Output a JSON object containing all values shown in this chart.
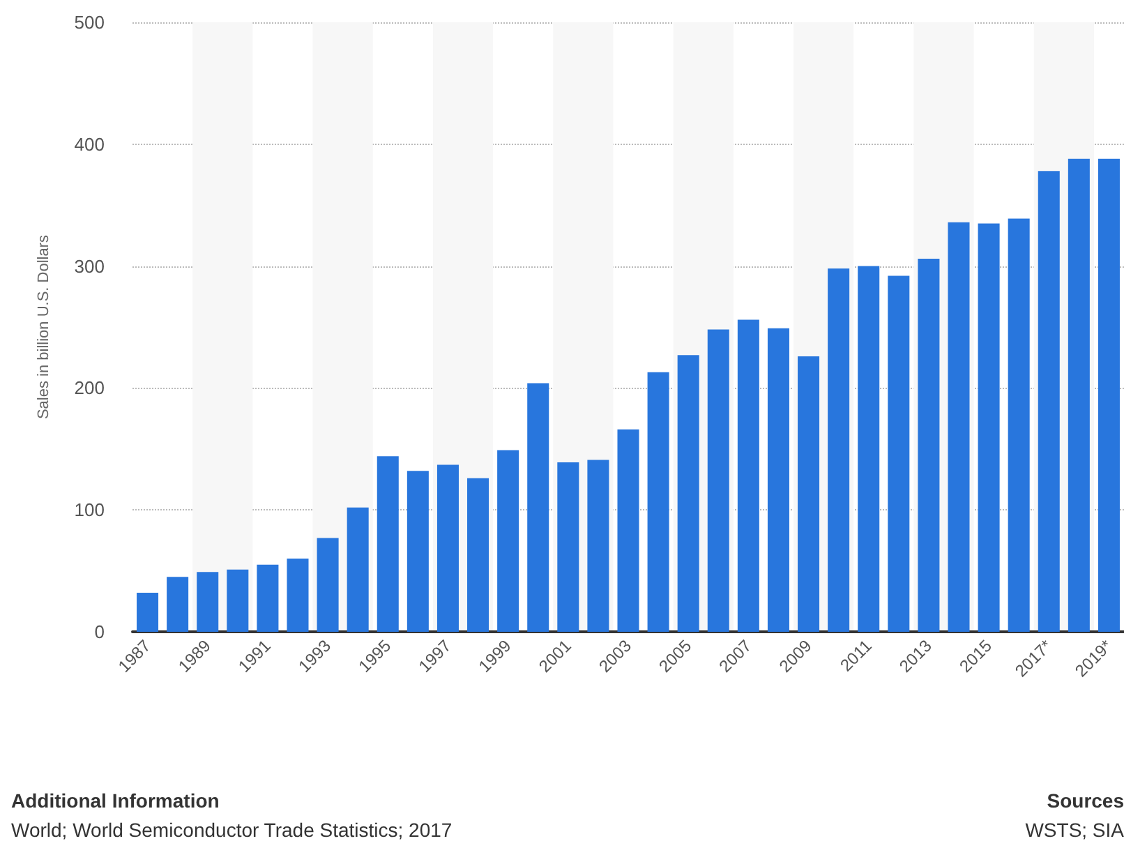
{
  "chart_data": {
    "type": "bar",
    "ylabel": "Sales in billion U.S. Dollars",
    "categories": [
      "1987",
      null,
      "1989",
      null,
      "1991",
      null,
      "1993",
      null,
      "1995",
      null,
      "1997",
      null,
      "1999",
      null,
      "2001",
      null,
      "2003",
      null,
      "2005",
      null,
      "2007",
      null,
      "2009",
      null,
      "2011",
      null,
      "2013",
      null,
      "2015",
      null,
      "2017*",
      null,
      "2019*"
    ],
    "values": [
      32,
      45,
      49,
      51,
      55,
      60,
      77,
      102,
      144,
      132,
      137,
      126,
      149,
      204,
      139,
      141,
      166,
      213,
      227,
      248,
      256,
      249,
      226,
      298,
      300,
      292,
      306,
      336,
      335,
      339,
      378,
      388,
      388
    ],
    "color": "#2876dd",
    "ylim": [
      0,
      500
    ],
    "yticks": [
      0,
      100,
      200,
      300,
      400,
      500
    ],
    "grid": "y",
    "annotations": [
      "Additional Information",
      "World; World Semiconductor Trade Statistics; 2017",
      "Sources",
      "WSTS; SIA"
    ]
  }
}
